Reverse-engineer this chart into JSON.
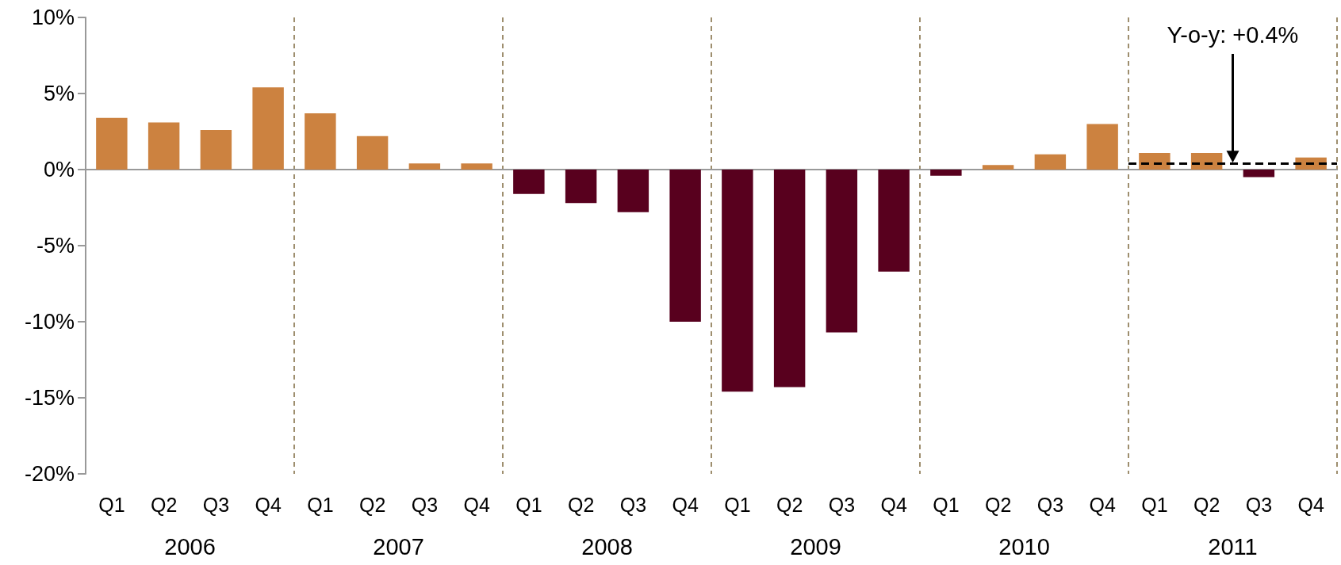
{
  "chart_data": {
    "type": "bar",
    "categories": [
      "Q1",
      "Q2",
      "Q3",
      "Q4",
      "Q1",
      "Q2",
      "Q3",
      "Q4",
      "Q1",
      "Q2",
      "Q3",
      "Q4",
      "Q1",
      "Q2",
      "Q3",
      "Q4",
      "Q1",
      "Q2",
      "Q3",
      "Q4",
      "Q1",
      "Q2",
      "Q3",
      "Q4"
    ],
    "values": [
      3.4,
      3.1,
      2.6,
      5.4,
      3.7,
      2.2,
      0.4,
      0.4,
      -1.6,
      -2.2,
      -2.8,
      -10.0,
      -14.6,
      -14.3,
      -10.7,
      -6.7,
      -0.4,
      0.3,
      1.0,
      3.0,
      1.1,
      1.1,
      -0.5,
      0.8
    ],
    "colors": [
      "#cc8240",
      "#cc8240",
      "#cc8240",
      "#cc8240",
      "#cc8240",
      "#cc8240",
      "#cc8240",
      "#cc8240",
      "#58001e",
      "#58001e",
      "#58001e",
      "#58001e",
      "#58001e",
      "#58001e",
      "#58001e",
      "#58001e",
      "#58001e",
      "#cc8240",
      "#cc8240",
      "#cc8240",
      "#cc8240",
      "#cc8240",
      "#58001e",
      "#cc8240"
    ],
    "ylim": [
      -20,
      10
    ],
    "yticks": [
      {
        "value": -20,
        "label": "-20%"
      },
      {
        "value": -15,
        "label": "-15%"
      },
      {
        "value": -10,
        "label": "-10%"
      },
      {
        "value": -5,
        "label": "-5%"
      },
      {
        "value": 0,
        "label": "0%"
      },
      {
        "value": 5,
        "label": "5%"
      },
      {
        "value": 10,
        "label": "10%"
      }
    ],
    "annotations": [
      "2006",
      "2007",
      "2008",
      "2009",
      "2010",
      "2011"
    ],
    "ref_lines": [
      {
        "axis": "y",
        "value": 0.4,
        "label": "Y-o-y: +0.4%",
        "color": "#000000",
        "line_style": "dashed"
      }
    ],
    "grid": false
  }
}
